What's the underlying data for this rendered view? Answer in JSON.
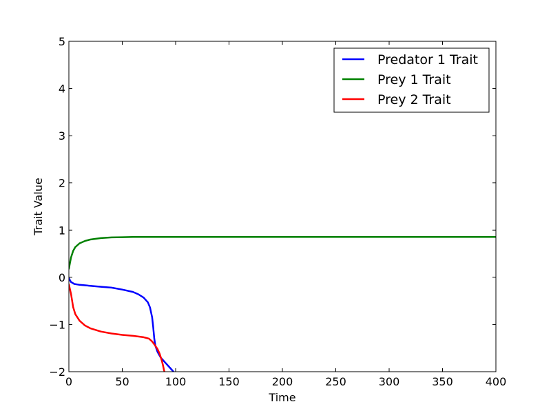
{
  "chart_data": {
    "type": "line",
    "title": "",
    "xlabel": "Time",
    "ylabel": "Trait Value",
    "xlim": [
      0,
      400
    ],
    "ylim": [
      -2,
      5
    ],
    "xticks": [
      0,
      50,
      100,
      150,
      200,
      250,
      300,
      350,
      400
    ],
    "yticks": [
      -2,
      -1,
      0,
      1,
      2,
      3,
      4,
      5
    ],
    "xtick_labels": [
      "0",
      "50",
      "100",
      "150",
      "200",
      "250",
      "300",
      "350",
      "400"
    ],
    "ytick_labels": [
      "−2",
      "−1",
      "0",
      "1",
      "2",
      "3",
      "4",
      "5"
    ],
    "grid": false,
    "legend_position": "top-right",
    "series": [
      {
        "name": "Predator 1 Trait",
        "color": "#0000ff",
        "points": [
          [
            0,
            -0.02
          ],
          [
            2,
            -0.1
          ],
          [
            5,
            -0.14
          ],
          [
            10,
            -0.16
          ],
          [
            20,
            -0.18
          ],
          [
            30,
            -0.2
          ],
          [
            40,
            -0.22
          ],
          [
            50,
            -0.26
          ],
          [
            60,
            -0.31
          ],
          [
            65,
            -0.36
          ],
          [
            70,
            -0.43
          ],
          [
            74,
            -0.53
          ],
          [
            76,
            -0.64
          ],
          [
            78,
            -0.85
          ],
          [
            79,
            -1.05
          ],
          [
            80,
            -1.3
          ],
          [
            81,
            -1.45
          ],
          [
            83,
            -1.58
          ],
          [
            86,
            -1.7
          ],
          [
            90,
            -1.8
          ],
          [
            94,
            -1.9
          ],
          [
            98,
            -2.0
          ]
        ]
      },
      {
        "name": "Prey 1 Trait",
        "color": "#008000",
        "points": [
          [
            0,
            0.18
          ],
          [
            2,
            0.42
          ],
          [
            4,
            0.56
          ],
          [
            6,
            0.64
          ],
          [
            10,
            0.72
          ],
          [
            15,
            0.77
          ],
          [
            20,
            0.8
          ],
          [
            30,
            0.83
          ],
          [
            40,
            0.845
          ],
          [
            50,
            0.85
          ],
          [
            60,
            0.855
          ],
          [
            80,
            0.855
          ],
          [
            150,
            0.855
          ],
          [
            250,
            0.855
          ],
          [
            400,
            0.855
          ]
        ]
      },
      {
        "name": "Prey 2 Trait",
        "color": "#ff0000",
        "points": [
          [
            0,
            -0.15
          ],
          [
            2,
            -0.35
          ],
          [
            4,
            -0.63
          ],
          [
            6,
            -0.78
          ],
          [
            10,
            -0.92
          ],
          [
            15,
            -1.02
          ],
          [
            20,
            -1.08
          ],
          [
            30,
            -1.15
          ],
          [
            40,
            -1.19
          ],
          [
            50,
            -1.22
          ],
          [
            60,
            -1.24
          ],
          [
            70,
            -1.27
          ],
          [
            75,
            -1.3
          ],
          [
            78,
            -1.36
          ],
          [
            80,
            -1.42
          ],
          [
            83,
            -1.52
          ],
          [
            85,
            -1.62
          ],
          [
            87,
            -1.76
          ],
          [
            88,
            -1.85
          ],
          [
            89,
            -1.95
          ],
          [
            89.5,
            -2.0
          ]
        ]
      }
    ]
  }
}
